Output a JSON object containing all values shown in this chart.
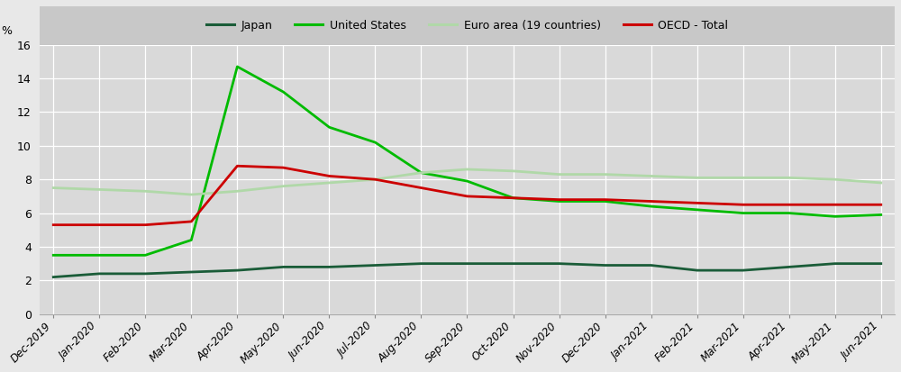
{
  "labels": [
    "Dec-2019",
    "Jan-2020",
    "Feb-2020",
    "Mar-2020",
    "Apr-2020",
    "May-2020",
    "Jun-2020",
    "Jul-2020",
    "Aug-2020",
    "Sep-2020",
    "Oct-2020",
    "Nov-2020",
    "Dec-2020",
    "Jan-2021",
    "Feb-2021",
    "Mar-2021",
    "Apr-2021",
    "May-2021",
    "Jun-2021"
  ],
  "japan": [
    2.2,
    2.4,
    2.4,
    2.5,
    2.6,
    2.8,
    2.8,
    2.9,
    3.0,
    3.0,
    3.0,
    3.0,
    2.9,
    2.9,
    2.6,
    2.6,
    2.8,
    3.0,
    3.0
  ],
  "united_states": [
    3.5,
    3.5,
    3.5,
    4.4,
    14.7,
    13.2,
    11.1,
    10.2,
    8.4,
    7.9,
    6.9,
    6.7,
    6.7,
    6.4,
    6.2,
    6.0,
    6.0,
    5.8,
    5.9
  ],
  "euro_area": [
    7.5,
    7.4,
    7.3,
    7.1,
    7.3,
    7.6,
    7.8,
    8.0,
    8.4,
    8.6,
    8.5,
    8.3,
    8.3,
    8.2,
    8.1,
    8.1,
    8.1,
    8.0,
    7.8
  ],
  "oecd_total": [
    5.3,
    5.3,
    5.3,
    5.5,
    8.8,
    8.7,
    8.2,
    8.0,
    7.5,
    7.0,
    6.9,
    6.8,
    6.8,
    6.7,
    6.6,
    6.5,
    6.5,
    6.5,
    6.5
  ],
  "colors": {
    "japan": "#1a5c38",
    "united_states": "#00bb00",
    "euro_area": "#b0d8a8",
    "oecd_total": "#cc0000"
  },
  "legend_labels": {
    "japan": "Japan",
    "united_states": "United States",
    "euro_area": "Euro area (19 countries)",
    "oecd_total": "OECD - Total"
  },
  "ylim": [
    0,
    16
  ],
  "yticks": [
    0,
    2,
    4,
    6,
    8,
    10,
    12,
    14,
    16
  ],
  "ylabel": "%",
  "plot_bg_color": "#d9d9d9",
  "legend_bg_color": "#c8c8c8",
  "fig_bg_color": "#e8e8e8",
  "linewidth": 2.0
}
